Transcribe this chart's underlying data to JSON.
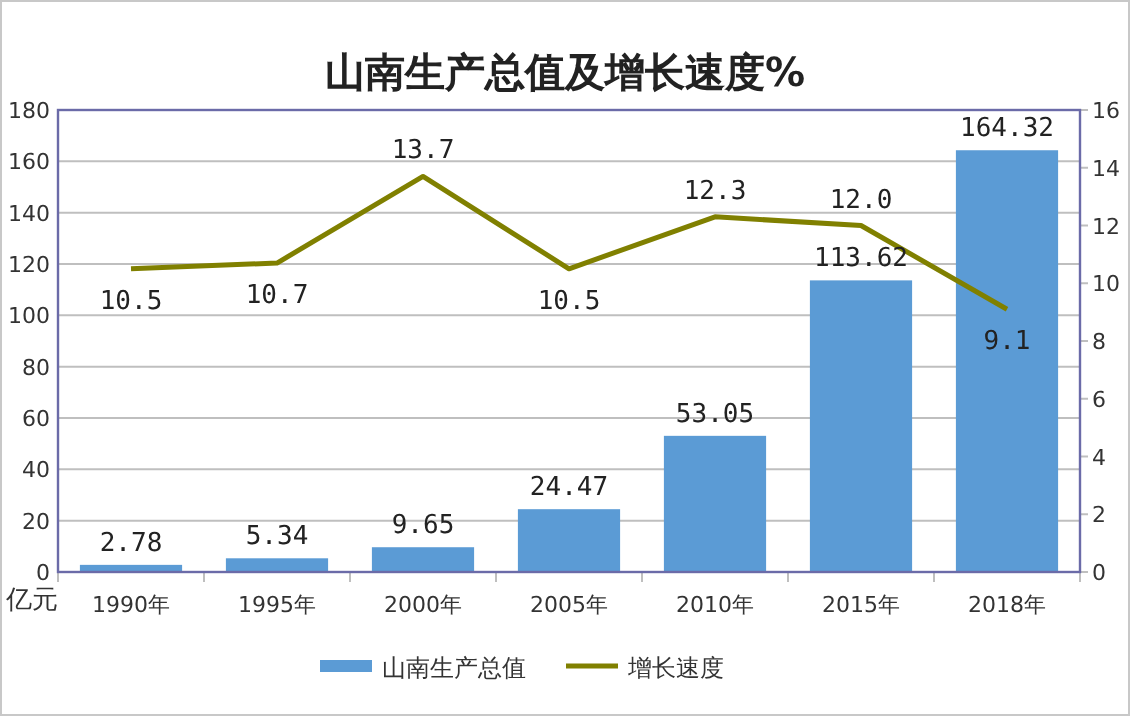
{
  "chart_data": {
    "type": "bar",
    "title": "山南生产总值及增长速度%",
    "ylabel": "亿元",
    "categories": [
      "1990年",
      "1995年",
      "2000年",
      "2005年",
      "2010年",
      "2015年",
      "2018年"
    ],
    "series": [
      {
        "name": "山南生产总值",
        "color": "#5b9bd5",
        "values": [
          2.78,
          5.34,
          9.65,
          24.47,
          53.05,
          113.62,
          164.32
        ]
      },
      {
        "name": "增长速度",
        "type": "line",
        "axis": "y2",
        "color": "#808000",
        "values": [
          10.5,
          10.7,
          13.7,
          10.5,
          12.3,
          12.0,
          9.1
        ],
        "value_labels": [
          "10.5",
          "10.7",
          "13.7",
          "10.5",
          "12.3",
          "12.0",
          "9.1"
        ]
      }
    ],
    "ylim": [
      0,
      180
    ],
    "yticks": [
      0,
      20,
      40,
      60,
      80,
      100,
      120,
      140,
      160,
      180
    ],
    "y2lim": [
      0,
      16
    ],
    "y2ticks": [
      0,
      2,
      4,
      6,
      8,
      10,
      12,
      14,
      16
    ],
    "grid": "y",
    "legend": "bottom",
    "data_labels": true
  }
}
